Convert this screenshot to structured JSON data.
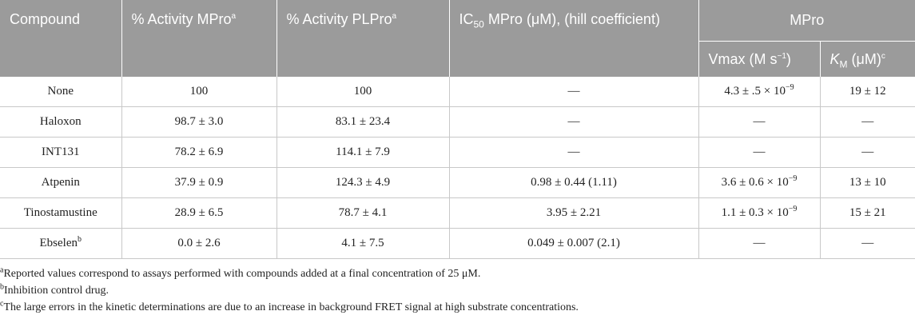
{
  "header": {
    "compound": "Compound",
    "activity_mpro": "% Activity MPro",
    "activity_mpro_sup": "a",
    "activity_plpro": "% Activity PLPro",
    "activity_plpro_sup": "a",
    "ic50_pre": "IC",
    "ic50_sub": "50",
    "ic50_post": " MPro (μM), (hill coefficient)",
    "mpro_group": "MPro",
    "vmax": "Vmax (M s",
    "vmax_sup": "−1",
    "vmax_close": ")",
    "km_k": "K",
    "km_sub": "M",
    "km_unit": " (μM)",
    "km_sup": "c"
  },
  "rows": [
    {
      "compound": "None",
      "sup": "",
      "act_mpro": "100",
      "act_plpro": "100",
      "ic50": "—",
      "vmax": "4.3 ± .5 × 10",
      "vmax_exp": "−9",
      "km": "19 ± 12"
    },
    {
      "compound": "Haloxon",
      "sup": "",
      "act_mpro": "98.7 ± 3.0",
      "act_plpro": "83.1 ± 23.4",
      "ic50": "—",
      "vmax": "—",
      "vmax_exp": "",
      "km": "—"
    },
    {
      "compound": "INT131",
      "sup": "",
      "act_mpro": "78.2 ± 6.9",
      "act_plpro": "114.1 ± 7.9",
      "ic50": "—",
      "vmax": "—",
      "vmax_exp": "",
      "km": "—"
    },
    {
      "compound": "Atpenin",
      "sup": "",
      "act_mpro": "37.9 ± 0.9",
      "act_plpro": "124.3 ± 4.9",
      "ic50": "0.98 ± 0.44 (1.11)",
      "vmax": "3.6 ± 0.6 × 10",
      "vmax_exp": "−9",
      "km": "13 ± 10"
    },
    {
      "compound": "Tinostamustine",
      "sup": "",
      "act_mpro": "28.9 ± 6.5",
      "act_plpro": "78.7 ± 4.1",
      "ic50": "3.95 ± 2.21",
      "vmax": "1.1 ± 0.3 × 10",
      "vmax_exp": "−9",
      "km": "15 ± 21"
    },
    {
      "compound": "Ebselen",
      "sup": "b",
      "act_mpro": "0.0 ± 2.6",
      "act_plpro": "4.1 ± 7.5",
      "ic50": "0.049 ± 0.007 (2.1)",
      "vmax": "—",
      "vmax_exp": "",
      "km": "—"
    }
  ],
  "footnotes": [
    {
      "mark": "a",
      "text": "Reported values correspond to assays performed with compounds added at a final concentration of 25 μM."
    },
    {
      "mark": "b",
      "text": "Inhibition control drug."
    },
    {
      "mark": "c",
      "text": "The large errors in the kinetic determinations are due to an increase in background FRET signal at high substrate concentrations."
    }
  ]
}
